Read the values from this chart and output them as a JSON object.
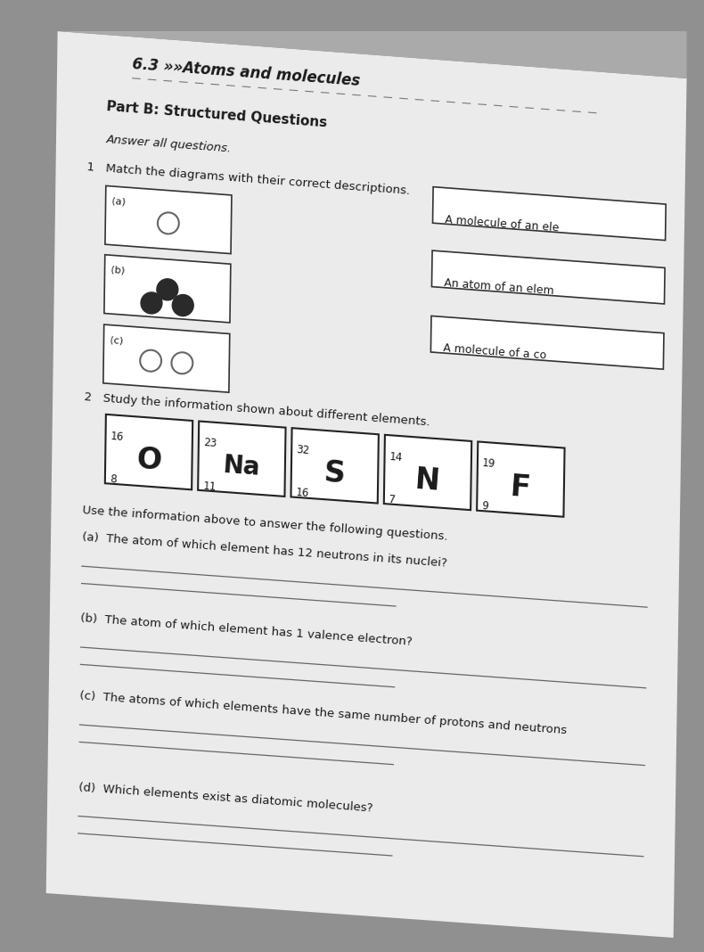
{
  "bg_color": "#909090",
  "page_bg": "#e8e8e8",
  "title_line1": "6.3 »»Atoms and molecules",
  "subtitle": "Part B: Structured Questions",
  "answer_all": "Answer all questions.",
  "q1_intro": "1   Match the diagrams with their correct descriptions.",
  "desc_labels": [
    "A molecule of an ele",
    "An atom of an elem",
    "A molecule of a co"
  ],
  "q2_intro": "2   Study the information shown about different elements.",
  "elements": [
    {
      "symbol": "O",
      "mass": "16",
      "atomic": "8"
    },
    {
      "symbol": "Na",
      "mass": "23",
      "atomic": "11"
    },
    {
      "symbol": "S",
      "mass": "32",
      "atomic": "16"
    },
    {
      "symbol": "N",
      "mass": "14",
      "atomic": "7"
    },
    {
      "symbol": "F",
      "mass": "19",
      "atomic": "9"
    }
  ],
  "use_info": "Use the information above to answer the following questions.",
  "qa": "(a)  The atom of which element has 12 neutrons in its nuclei?",
  "qb": "(b)  The atom of which element has 1 valence electron?",
  "qc": "(c)  The atoms of which elements have the same number of protons and neutrons",
  "qd": "(d)  Which elements exist as diatomic molecules?",
  "text_color": "#1a1a1a",
  "line_color": "#555555"
}
